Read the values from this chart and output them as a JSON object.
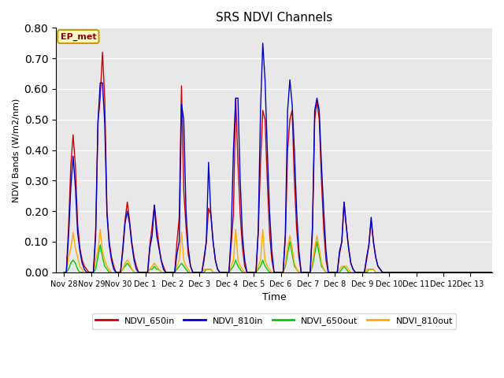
{
  "title": "SRS NDVI Channels",
  "ylabel": "NDVI Bands (W/m2/nm)",
  "xlabel": "Time",
  "ylim": [
    0.0,
    0.8
  ],
  "annotation_text": "EP_met",
  "background_color": "#e8e8e8",
  "tick_labels": [
    "Nov 28",
    "Nov 29",
    "Nov 30",
    "Dec 1",
    "Dec 2",
    "Dec 3",
    "Dec 4",
    "Dec 5",
    "Dec 6",
    "Dec 7",
    "Dec 8",
    "Dec 9",
    "Dec 10",
    "Dec 11",
    "Dec 12",
    "Dec 13"
  ],
  "colors": {
    "NDVI_650in": "#cc0000",
    "NDVI_810in": "#0000cc",
    "NDVI_650out": "#00cc00",
    "NDVI_810out": "#ffaa00"
  },
  "NDVI_650in": [
    0.0,
    0.0,
    0.15,
    0.35,
    0.45,
    0.35,
    0.16,
    0.08,
    0.04,
    0.02,
    0.01,
    0.0,
    0.0,
    0.0,
    0.14,
    0.49,
    0.57,
    0.72,
    0.57,
    0.2,
    0.1,
    0.05,
    0.02,
    0.0,
    0.0,
    0.0,
    0.08,
    0.17,
    0.23,
    0.17,
    0.1,
    0.05,
    0.02,
    0.0,
    0.0,
    0.0,
    0.0,
    0.0,
    0.09,
    0.15,
    0.22,
    0.15,
    0.09,
    0.04,
    0.02,
    0.0,
    0.0,
    0.0,
    0.0,
    0.0,
    0.1,
    0.18,
    0.61,
    0.27,
    0.15,
    0.06,
    0.02,
    0.0,
    0.0,
    0.0,
    0.0,
    0.0,
    0.05,
    0.1,
    0.21,
    0.19,
    0.1,
    0.04,
    0.01,
    0.0,
    0.0,
    0.0,
    0.0,
    0.0,
    0.09,
    0.19,
    0.57,
    0.36,
    0.19,
    0.08,
    0.02,
    0.0,
    0.0,
    0.0,
    0.0,
    0.0,
    0.13,
    0.36,
    0.53,
    0.5,
    0.3,
    0.13,
    0.04,
    0.0,
    0.0,
    0.0,
    0.0,
    0.0,
    0.11,
    0.4,
    0.5,
    0.53,
    0.3,
    0.14,
    0.05,
    0.0,
    0.0,
    0.0,
    0.0,
    0.0,
    0.13,
    0.5,
    0.56,
    0.5,
    0.3,
    0.14,
    0.04,
    0.0,
    0.0,
    0.0,
    0.0,
    0.0,
    0.06,
    0.1,
    0.23,
    0.15,
    0.08,
    0.03,
    0.01,
    0.0,
    0.0,
    0.0,
    0.0,
    0.0,
    0.04,
    0.09,
    0.17,
    0.1,
    0.05,
    0.02,
    0.01,
    0.0,
    0.0,
    0.0,
    0.0,
    0.0,
    0.0,
    0.0,
    0.0,
    0.0,
    0.0,
    0.0,
    0.0,
    0.0,
    0.0,
    0.0,
    0.0,
    0.0,
    0.0,
    0.0,
    0.0,
    0.0,
    0.0,
    0.0,
    0.0,
    0.0,
    0.0,
    0.0,
    0.0,
    0.0,
    0.0,
    0.0,
    0.0,
    0.0,
    0.0,
    0.0,
    0.0,
    0.0,
    0.0,
    0.0,
    0.0,
    0.0,
    0.0,
    0.0,
    0.0,
    0.0,
    0.0,
    0.0,
    0.0,
    0.0,
    0.0,
    0.0
  ],
  "NDVI_810in": [
    0.0,
    0.0,
    0.12,
    0.28,
    0.38,
    0.28,
    0.13,
    0.07,
    0.03,
    0.01,
    0.0,
    0.0,
    0.0,
    0.0,
    0.12,
    0.49,
    0.62,
    0.62,
    0.49,
    0.19,
    0.09,
    0.04,
    0.01,
    0.0,
    0.0,
    0.0,
    0.07,
    0.16,
    0.2,
    0.16,
    0.09,
    0.04,
    0.01,
    0.0,
    0.0,
    0.0,
    0.0,
    0.0,
    0.08,
    0.12,
    0.22,
    0.12,
    0.08,
    0.04,
    0.01,
    0.0,
    0.0,
    0.0,
    0.0,
    0.0,
    0.06,
    0.1,
    0.55,
    0.5,
    0.2,
    0.08,
    0.02,
    0.0,
    0.0,
    0.0,
    0.0,
    0.0,
    0.04,
    0.1,
    0.36,
    0.19,
    0.1,
    0.04,
    0.01,
    0.0,
    0.0,
    0.0,
    0.0,
    0.0,
    0.12,
    0.4,
    0.57,
    0.57,
    0.3,
    0.12,
    0.04,
    0.0,
    0.0,
    0.0,
    0.0,
    0.0,
    0.14,
    0.53,
    0.75,
    0.63,
    0.4,
    0.2,
    0.07,
    0.0,
    0.0,
    0.0,
    0.0,
    0.0,
    0.13,
    0.53,
    0.63,
    0.55,
    0.4,
    0.2,
    0.07,
    0.0,
    0.0,
    0.0,
    0.0,
    0.0,
    0.15,
    0.53,
    0.57,
    0.53,
    0.35,
    0.2,
    0.07,
    0.0,
    0.0,
    0.0,
    0.0,
    0.0,
    0.07,
    0.1,
    0.23,
    0.15,
    0.08,
    0.03,
    0.01,
    0.0,
    0.0,
    0.0,
    0.0,
    0.0,
    0.05,
    0.09,
    0.18,
    0.1,
    0.05,
    0.02,
    0.01,
    0.0,
    0.0,
    0.0,
    0.0,
    0.0,
    0.0,
    0.0,
    0.0,
    0.0,
    0.0,
    0.0,
    0.0,
    0.0,
    0.0,
    0.0,
    0.0,
    0.0,
    0.0,
    0.0,
    0.0,
    0.0,
    0.0,
    0.0,
    0.0,
    0.0,
    0.0,
    0.0,
    0.0,
    0.0,
    0.0,
    0.0,
    0.0,
    0.0,
    0.0,
    0.0,
    0.0,
    0.0,
    0.0,
    0.0,
    0.0,
    0.0,
    0.0,
    0.0,
    0.0,
    0.0,
    0.0,
    0.0,
    0.0,
    0.0,
    0.0,
    0.0
  ],
  "NDVI_650out": [
    0.0,
    0.0,
    0.01,
    0.03,
    0.04,
    0.03,
    0.01,
    0.0,
    0.0,
    0.0,
    0.0,
    0.0,
    0.0,
    0.0,
    0.01,
    0.05,
    0.09,
    0.05,
    0.02,
    0.01,
    0.0,
    0.0,
    0.0,
    0.0,
    0.0,
    0.0,
    0.01,
    0.02,
    0.03,
    0.02,
    0.01,
    0.0,
    0.0,
    0.0,
    0.0,
    0.0,
    0.0,
    0.0,
    0.01,
    0.01,
    0.02,
    0.01,
    0.01,
    0.0,
    0.0,
    0.0,
    0.0,
    0.0,
    0.0,
    0.0,
    0.01,
    0.02,
    0.03,
    0.02,
    0.01,
    0.0,
    0.0,
    0.0,
    0.0,
    0.0,
    0.0,
    0.0,
    0.0,
    0.01,
    0.01,
    0.01,
    0.0,
    0.0,
    0.0,
    0.0,
    0.0,
    0.0,
    0.0,
    0.0,
    0.01,
    0.02,
    0.04,
    0.02,
    0.01,
    0.0,
    0.0,
    0.0,
    0.0,
    0.0,
    0.0,
    0.0,
    0.01,
    0.02,
    0.04,
    0.02,
    0.01,
    0.0,
    0.0,
    0.0,
    0.0,
    0.0,
    0.0,
    0.0,
    0.02,
    0.06,
    0.1,
    0.06,
    0.02,
    0.01,
    0.0,
    0.0,
    0.0,
    0.0,
    0.0,
    0.0,
    0.02,
    0.06,
    0.1,
    0.06,
    0.02,
    0.01,
    0.0,
    0.0,
    0.0,
    0.0,
    0.0,
    0.0,
    0.0,
    0.01,
    0.02,
    0.01,
    0.0,
    0.0,
    0.0,
    0.0,
    0.0,
    0.0,
    0.0,
    0.0,
    0.0,
    0.01,
    0.01,
    0.01,
    0.0,
    0.0,
    0.0,
    0.0,
    0.0,
    0.0,
    0.0,
    0.0,
    0.0,
    0.0,
    0.0,
    0.0,
    0.0,
    0.0,
    0.0,
    0.0,
    0.0,
    0.0,
    0.0,
    0.0,
    0.0,
    0.0,
    0.0,
    0.0,
    0.0,
    0.0,
    0.0,
    0.0,
    0.0,
    0.0,
    0.0,
    0.0,
    0.0,
    0.0,
    0.0,
    0.0,
    0.0,
    0.0,
    0.0,
    0.0,
    0.0,
    0.0,
    0.0,
    0.0,
    0.0,
    0.0,
    0.0,
    0.0,
    0.0,
    0.0,
    0.0,
    0.0,
    0.0,
    0.0
  ],
  "NDVI_810out": [
    0.0,
    0.0,
    0.05,
    0.08,
    0.13,
    0.08,
    0.05,
    0.02,
    0.01,
    0.0,
    0.0,
    0.0,
    0.0,
    0.0,
    0.04,
    0.07,
    0.14,
    0.07,
    0.04,
    0.02,
    0.01,
    0.0,
    0.0,
    0.0,
    0.0,
    0.0,
    0.01,
    0.03,
    0.04,
    0.03,
    0.01,
    0.0,
    0.0,
    0.0,
    0.0,
    0.0,
    0.0,
    0.0,
    0.01,
    0.02,
    0.03,
    0.02,
    0.01,
    0.0,
    0.0,
    0.0,
    0.0,
    0.0,
    0.0,
    0.0,
    0.02,
    0.04,
    0.13,
    0.04,
    0.02,
    0.01,
    0.0,
    0.0,
    0.0,
    0.0,
    0.0,
    0.0,
    0.01,
    0.01,
    0.01,
    0.01,
    0.0,
    0.0,
    0.0,
    0.0,
    0.0,
    0.0,
    0.0,
    0.0,
    0.02,
    0.04,
    0.14,
    0.04,
    0.02,
    0.01,
    0.0,
    0.0,
    0.0,
    0.0,
    0.0,
    0.0,
    0.02,
    0.04,
    0.14,
    0.04,
    0.02,
    0.01,
    0.0,
    0.0,
    0.0,
    0.0,
    0.0,
    0.0,
    0.03,
    0.08,
    0.12,
    0.08,
    0.03,
    0.01,
    0.0,
    0.0,
    0.0,
    0.0,
    0.0,
    0.0,
    0.03,
    0.08,
    0.12,
    0.08,
    0.03,
    0.01,
    0.0,
    0.0,
    0.0,
    0.0,
    0.0,
    0.0,
    0.01,
    0.02,
    0.02,
    0.02,
    0.01,
    0.0,
    0.0,
    0.0,
    0.0,
    0.0,
    0.0,
    0.0,
    0.01,
    0.01,
    0.01,
    0.01,
    0.0,
    0.0,
    0.0,
    0.0,
    0.0,
    0.0,
    0.0,
    0.0,
    0.0,
    0.0,
    0.0,
    0.0,
    0.0,
    0.0,
    0.0,
    0.0,
    0.0,
    0.0,
    0.0,
    0.0,
    0.0,
    0.0,
    0.0,
    0.0,
    0.0,
    0.0,
    0.0,
    0.0,
    0.0,
    0.0,
    0.0,
    0.0,
    0.0,
    0.0,
    0.0,
    0.0,
    0.0,
    0.0,
    0.0,
    0.0,
    0.0,
    0.0,
    0.0,
    0.0,
    0.0,
    0.0,
    0.0,
    0.0,
    0.0,
    0.0,
    0.0,
    0.0,
    0.0,
    0.0
  ]
}
